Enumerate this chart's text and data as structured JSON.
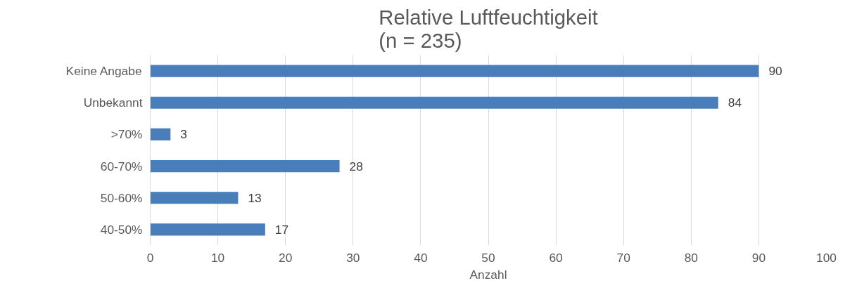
{
  "chart_data": {
    "type": "bar",
    "orientation": "horizontal",
    "title": "Relative Luftfeuchtigkeit\n(n = 235)",
    "xlabel": "Anzahl",
    "categories": [
      "Keine Angabe",
      "Unbekannt",
      ">70%",
      "60-70%",
      "50-60%",
      "40-50%"
    ],
    "values": [
      90,
      84,
      3,
      28,
      13,
      17
    ],
    "color": "#4a7ebb",
    "xlim": [
      0,
      100
    ],
    "xticks": [
      0,
      10,
      20,
      30,
      40,
      50,
      60,
      70,
      80,
      90,
      100
    ],
    "grid": "x",
    "data_labels": true
  }
}
